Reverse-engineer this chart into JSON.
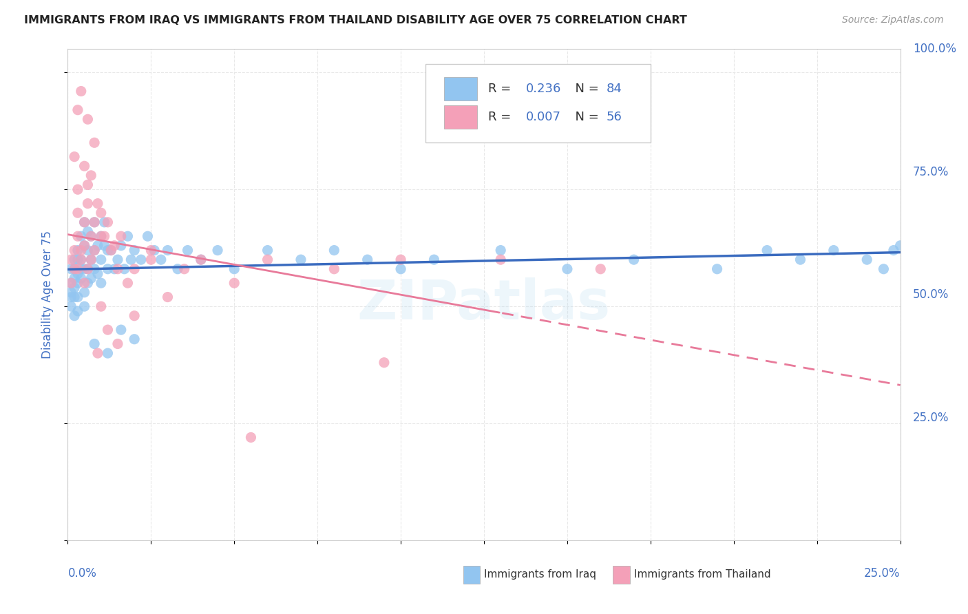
{
  "title": "IMMIGRANTS FROM IRAQ VS IMMIGRANTS FROM THAILAND DISABILITY AGE OVER 75 CORRELATION CHART",
  "source": "Source: ZipAtlas.com",
  "ylabel": "Disability Age Over 75",
  "xlim": [
    0,
    0.25
  ],
  "ylim": [
    0,
    1.05
  ],
  "iraq_color": "#92c5f0",
  "thailand_color": "#f4a0b8",
  "iraq_line_color": "#3a6bbf",
  "thailand_line_color": "#e87a9a",
  "legend_r_iraq": "R = 0.236",
  "legend_n_iraq": "N = 84",
  "legend_r_thailand": "R = 0.007",
  "legend_n_thailand": "N = 56",
  "background_color": "#ffffff",
  "grid_color": "#e8e8e8",
  "title_color": "#222222",
  "axis_label_color": "#4472c4",
  "watermark_text": "ZIPatlas",
  "iraq_x": [
    0.001,
    0.001,
    0.001,
    0.001,
    0.001,
    0.002,
    0.002,
    0.002,
    0.002,
    0.002,
    0.002,
    0.003,
    0.003,
    0.003,
    0.003,
    0.003,
    0.003,
    0.004,
    0.004,
    0.004,
    0.004,
    0.005,
    0.005,
    0.005,
    0.005,
    0.005,
    0.006,
    0.006,
    0.006,
    0.006,
    0.007,
    0.007,
    0.007,
    0.008,
    0.008,
    0.008,
    0.009,
    0.009,
    0.01,
    0.01,
    0.01,
    0.011,
    0.011,
    0.012,
    0.012,
    0.013,
    0.014,
    0.015,
    0.016,
    0.017,
    0.018,
    0.019,
    0.02,
    0.022,
    0.024,
    0.026,
    0.028,
    0.03,
    0.033,
    0.036,
    0.04,
    0.045,
    0.05,
    0.06,
    0.07,
    0.08,
    0.09,
    0.1,
    0.11,
    0.13,
    0.15,
    0.17,
    0.195,
    0.21,
    0.22,
    0.23,
    0.24,
    0.245,
    0.248,
    0.25,
    0.008,
    0.012,
    0.016,
    0.02
  ],
  "iraq_y": [
    0.55,
    0.53,
    0.58,
    0.5,
    0.52,
    0.58,
    0.54,
    0.6,
    0.56,
    0.52,
    0.48,
    0.6,
    0.55,
    0.57,
    0.52,
    0.49,
    0.62,
    0.6,
    0.56,
    0.65,
    0.58,
    0.63,
    0.58,
    0.53,
    0.68,
    0.5,
    0.62,
    0.58,
    0.66,
    0.55,
    0.65,
    0.6,
    0.56,
    0.62,
    0.58,
    0.68,
    0.63,
    0.57,
    0.65,
    0.6,
    0.55,
    0.63,
    0.68,
    0.62,
    0.58,
    0.62,
    0.58,
    0.6,
    0.63,
    0.58,
    0.65,
    0.6,
    0.62,
    0.6,
    0.65,
    0.62,
    0.6,
    0.62,
    0.58,
    0.62,
    0.6,
    0.62,
    0.58,
    0.62,
    0.6,
    0.62,
    0.6,
    0.58,
    0.6,
    0.62,
    0.58,
    0.6,
    0.58,
    0.62,
    0.6,
    0.62,
    0.6,
    0.58,
    0.62,
    0.63,
    0.42,
    0.4,
    0.45,
    0.43
  ],
  "thailand_x": [
    0.001,
    0.001,
    0.002,
    0.002,
    0.003,
    0.003,
    0.003,
    0.004,
    0.004,
    0.005,
    0.005,
    0.005,
    0.006,
    0.006,
    0.007,
    0.007,
    0.008,
    0.008,
    0.009,
    0.01,
    0.01,
    0.011,
    0.012,
    0.013,
    0.014,
    0.015,
    0.016,
    0.018,
    0.02,
    0.025,
    0.03,
    0.035,
    0.04,
    0.05,
    0.06,
    0.08,
    0.1,
    0.13,
    0.16,
    0.009,
    0.004,
    0.006,
    0.008,
    0.007,
    0.003,
    0.005,
    0.002,
    0.01,
    0.015,
    0.02,
    0.012,
    0.095,
    0.055,
    0.025,
    0.003,
    0.006
  ],
  "thailand_y": [
    0.6,
    0.55,
    0.58,
    0.62,
    0.65,
    0.58,
    0.7,
    0.6,
    0.62,
    0.63,
    0.55,
    0.68,
    0.72,
    0.58,
    0.65,
    0.6,
    0.68,
    0.62,
    0.72,
    0.65,
    0.7,
    0.65,
    0.68,
    0.62,
    0.63,
    0.58,
    0.65,
    0.55,
    0.58,
    0.6,
    0.52,
    0.58,
    0.6,
    0.55,
    0.6,
    0.58,
    0.6,
    0.6,
    0.58,
    0.4,
    0.96,
    0.9,
    0.85,
    0.78,
    0.75,
    0.8,
    0.82,
    0.5,
    0.42,
    0.48,
    0.45,
    0.38,
    0.22,
    0.62,
    0.92,
    0.76
  ]
}
